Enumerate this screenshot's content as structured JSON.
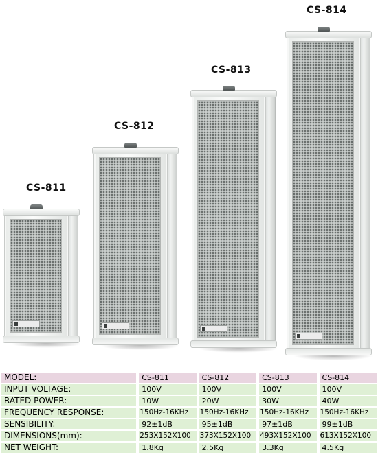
{
  "models": [
    "CS-811",
    "CS-812",
    "CS-813",
    "CS-814"
  ],
  "spec_table": {
    "header_label": "MODEL:",
    "rows": [
      {
        "label": "INPUT VOLTAGE:",
        "values": [
          "100V",
          "100V",
          "100V",
          "100V"
        ]
      },
      {
        "label": "RATED POWER:",
        "values": [
          "10W",
          "20W",
          "30W",
          "40W"
        ]
      },
      {
        "label": "FREQUENCY RESPONSE:",
        "values": [
          "150Hz-16KHz",
          "150Hz-16KHz",
          "150Hz-16KHz",
          "150Hz-16KHz"
        ]
      },
      {
        "label": "SENSIBILITY:",
        "values": [
          "92±1dB",
          "95±1dB",
          "97±1dB",
          "99±1dB"
        ]
      },
      {
        "label": "DIMENSIONS(mm):",
        "values": [
          "253X152X100",
          "373X152X100",
          "493X152X100",
          "613X152X100"
        ]
      },
      {
        "label": "NET WEIGHT:",
        "values": [
          "1.8Kg",
          "2.5Kg",
          "3.3Kg",
          "4.5Kg"
        ]
      }
    ]
  },
  "colors": {
    "header_row": "#e9d5e0",
    "data_row": "#dff0d5"
  }
}
